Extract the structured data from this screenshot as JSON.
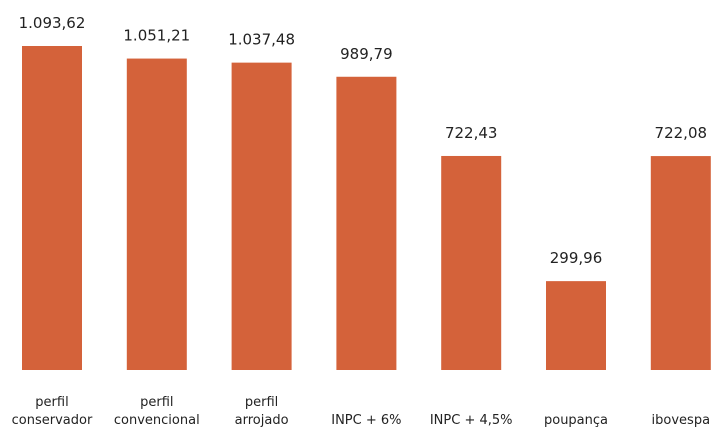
{
  "chart_data": {
    "type": "bar",
    "categories": [
      "perfil conservador",
      "perfil convencional",
      "perfil arrojado",
      "INPC + 6%",
      "INPC + 4,5%",
      "poupança",
      "ibovespa"
    ],
    "values": [
      1093.62,
      1051.21,
      1037.48,
      989.79,
      722.43,
      299.96,
      722.08
    ],
    "value_labels": [
      "1.093,62",
      "1.051,21",
      "1.037,48",
      "989,79",
      "722,43",
      "299,96",
      "722,08"
    ],
    "color": "#d4623a"
  }
}
